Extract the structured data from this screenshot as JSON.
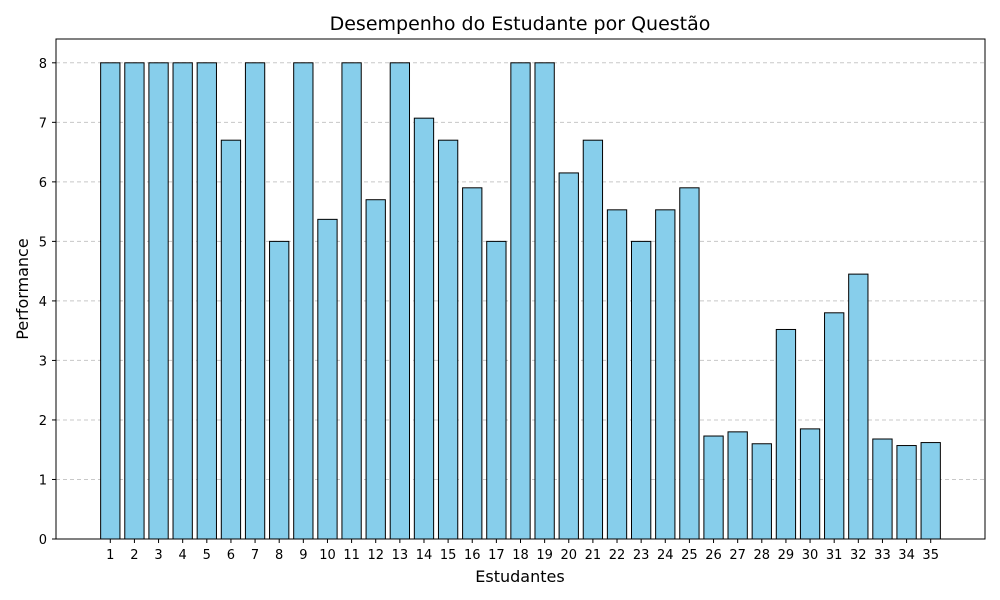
{
  "chart_data": {
    "type": "bar",
    "title": "Desempenho do Estudante por Questão",
    "xlabel": "Estudantes",
    "ylabel": "Performance",
    "categories": [
      "1",
      "2",
      "3",
      "4",
      "5",
      "6",
      "7",
      "8",
      "9",
      "10",
      "11",
      "12",
      "13",
      "14",
      "15",
      "16",
      "17",
      "18",
      "19",
      "20",
      "21",
      "22",
      "23",
      "24",
      "25",
      "26",
      "27",
      "28",
      "29",
      "30",
      "31",
      "32",
      "33",
      "34",
      "35"
    ],
    "values": [
      8,
      8,
      8,
      8,
      8,
      6.7,
      8,
      5,
      8,
      5.37,
      8,
      5.7,
      8,
      7.07,
      6.7,
      5.9,
      5,
      8,
      8,
      6.15,
      6.7,
      5.53,
      5,
      5.53,
      5.9,
      1.73,
      1.8,
      1.6,
      3.52,
      1.85,
      3.8,
      4.45,
      1.68,
      1.57,
      1.62
    ],
    "ylim": [
      0,
      8.4
    ],
    "yticks": [
      0,
      1,
      2,
      3,
      4,
      5,
      6,
      7,
      8
    ],
    "grid": "y-dashed",
    "colors": {
      "bar_fill": "#87CEEB",
      "bar_edge": "#000000",
      "grid": "#c8c8c8"
    }
  }
}
